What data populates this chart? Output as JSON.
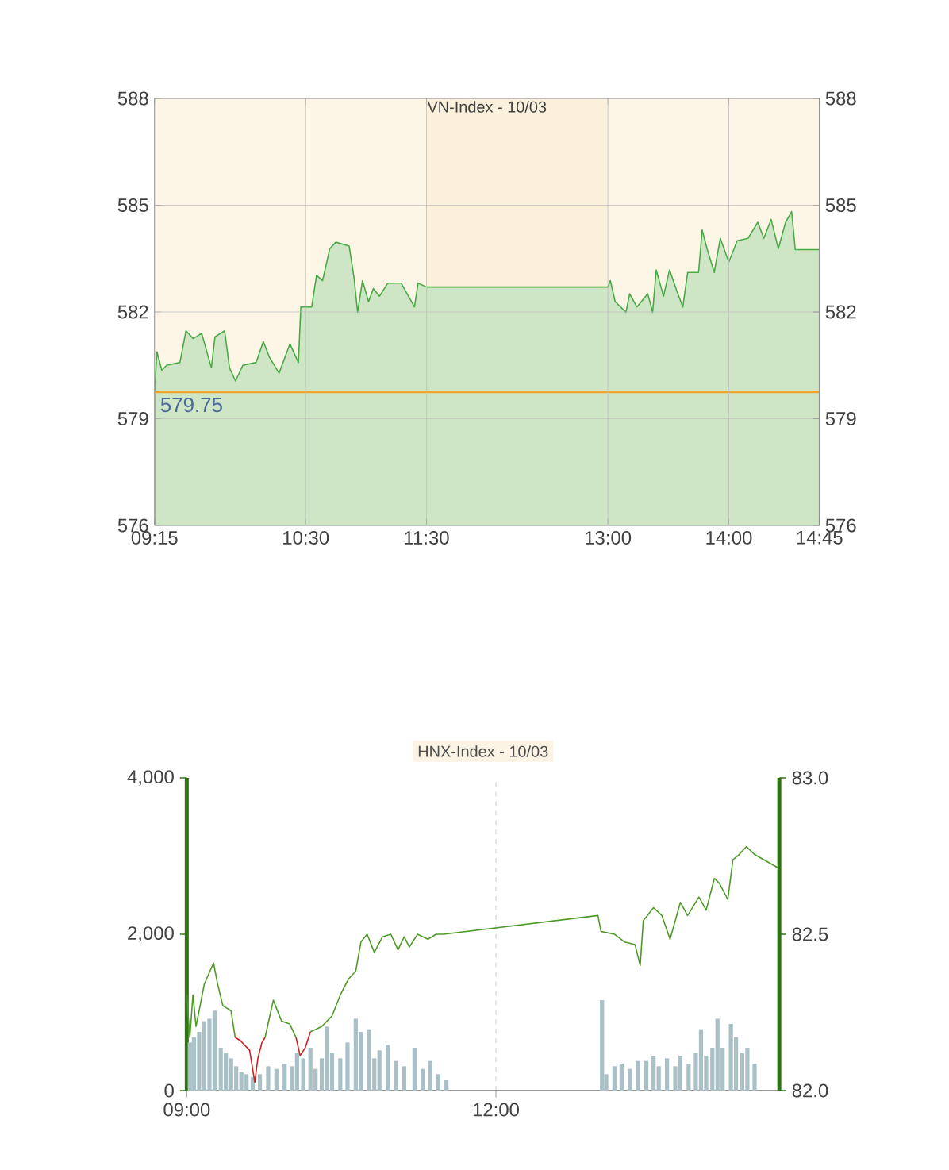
{
  "chart_data": [
    {
      "type": "area",
      "title": "VN-Index - 10/03",
      "xlim": [
        9.25,
        14.75
      ],
      "xticks": [
        {
          "value": 9.25,
          "label": "09:15"
        },
        {
          "value": 10.5,
          "label": "10:30"
        },
        {
          "value": 11.5,
          "label": "11:30"
        },
        {
          "value": 13,
          "label": "13:00"
        },
        {
          "value": 14,
          "label": "14:00"
        },
        {
          "value": 14.75,
          "label": "14:45"
        }
      ],
      "ylim": [
        576,
        588
      ],
      "yticks": [
        576,
        579,
        582,
        585,
        588
      ],
      "y2lim": [
        576,
        588
      ],
      "y2ticks": [
        576,
        579,
        582,
        585,
        588
      ],
      "grid": true,
      "bands": [
        {
          "axis": "x",
          "from": 11.5,
          "to": 13,
          "color": "#fbf0dc"
        }
      ],
      "ref_lines": [
        {
          "axis": "y",
          "value": 579.75,
          "label": "579.75",
          "color": "#f2a32a"
        }
      ],
      "series": [
        {
          "color": "#cfe6c6",
          "x": [
            9.25,
            9.27,
            9.31,
            9.35,
            9.46,
            9.51,
            9.57,
            9.64,
            9.72,
            9.75,
            9.83,
            9.87,
            9.92,
            9.98,
            10.09,
            10.15,
            10.2,
            10.28,
            10.37,
            10.44,
            10.46,
            10.55,
            10.59,
            10.64,
            10.7,
            10.75,
            10.86,
            10.9,
            10.93,
            10.97,
            11.02,
            11.06,
            11.11,
            11.18,
            11.29,
            11.4,
            11.43,
            11.5,
            13.0,
            13.02,
            13.06,
            13.15,
            13.18,
            13.24,
            13.33,
            13.37,
            13.4,
            13.46,
            13.51,
            13.57,
            13.62,
            13.66,
            13.75,
            13.78,
            13.82,
            13.88,
            13.93,
            14.0,
            14.07,
            14.16,
            14.24,
            14.29,
            14.35,
            14.41,
            14.47,
            14.52,
            14.55,
            14.75
          ],
          "values": [
            579.76,
            580.88,
            580.36,
            580.5,
            580.58,
            581.47,
            581.25,
            581.4,
            580.43,
            581.3,
            581.47,
            580.43,
            580.06,
            580.5,
            580.58,
            581.17,
            580.73,
            580.28,
            581.1,
            580.58,
            582.14,
            582.14,
            583.03,
            582.88,
            583.78,
            583.96,
            583.85,
            582.96,
            581.99,
            582.88,
            582.29,
            582.66,
            582.44,
            582.81,
            582.81,
            582.14,
            582.81,
            582.7,
            582.7,
            582.88,
            582.29,
            581.99,
            582.51,
            582.14,
            582.51,
            581.99,
            583.18,
            582.44,
            583.18,
            582.59,
            582.14,
            583.11,
            583.11,
            584.3,
            583.78,
            583.11,
            584.07,
            583.4,
            584.0,
            584.07,
            584.52,
            584.07,
            584.6,
            583.78,
            584.52,
            584.82,
            583.75,
            583.75
          ]
        }
      ]
    },
    {
      "type": "line",
      "title": "HNX-Index - 10/03",
      "xlim": [
        9,
        14.75
      ],
      "xticks": [
        {
          "value": 9,
          "label": "09:00"
        },
        {
          "value": 12,
          "label": "12:00"
        }
      ],
      "ylim": [
        0,
        4000
      ],
      "yticks": [
        {
          "value": 0,
          "label": "0"
        },
        {
          "value": 2000,
          "label": "2,000"
        },
        {
          "value": 4000,
          "label": "4,000"
        }
      ],
      "y2lim": [
        82,
        83
      ],
      "y2ticks": [
        {
          "value": 82,
          "label": "82.0"
        },
        {
          "value": 82.5,
          "label": "82.5"
        },
        {
          "value": 83,
          "label": "83.0"
        }
      ],
      "grid": "x",
      "series": [
        {
          "type": "bar",
          "color": "#a9c0c6",
          "x": [
            9.03,
            9.07,
            9.12,
            9.17,
            9.22,
            9.27,
            9.33,
            9.38,
            9.43,
            9.48,
            9.53,
            9.58,
            9.64,
            9.71,
            9.79,
            9.87,
            9.95,
            10.02,
            10.07,
            10.13,
            10.2,
            10.25,
            10.31,
            10.36,
            10.41,
            10.49,
            10.56,
            10.64,
            10.69,
            10.77,
            10.82,
            10.87,
            10.95,
            11.03,
            11.11,
            11.21,
            11.29,
            11.36,
            11.44,
            11.52,
            13.03,
            13.07,
            13.15,
            13.22,
            13.3,
            13.38,
            13.46,
            13.53,
            13.58,
            13.66,
            13.74,
            13.79,
            13.87,
            13.94,
            13.99,
            14.04,
            14.1,
            14.15,
            14.2,
            14.28,
            14.33,
            14.39,
            14.44,
            14.51
          ],
          "values": [
            616,
            683,
            751,
            887,
            920,
            1022,
            548,
            480,
            413,
            311,
            244,
            210,
            176,
            210,
            311,
            277,
            345,
            311,
            480,
            413,
            548,
            277,
            413,
            819,
            480,
            413,
            616,
            920,
            751,
            785,
            413,
            514,
            582,
            379,
            311,
            548,
            277,
            379,
            210,
            142,
            1157,
            210,
            311,
            345,
            277,
            379,
            379,
            447,
            311,
            413,
            311,
            447,
            345,
            480,
            785,
            447,
            548,
            920,
            548,
            853,
            683,
            480,
            548,
            345
          ]
        },
        {
          "type": "line",
          "axis": "y2",
          "color": "#4e9a26",
          "x": [
            9.0,
            9.03,
            9.06,
            9.09,
            9.17,
            9.26,
            9.3,
            9.35,
            9.43,
            9.47,
            9.52,
            9.61,
            9.66,
            9.69,
            9.73,
            9.76,
            9.84,
            9.92,
            10.0,
            10.06,
            10.1,
            10.15,
            10.2,
            10.31,
            10.41,
            10.49,
            10.57,
            10.64,
            10.69,
            10.75,
            10.82,
            10.9,
            10.98,
            11.05,
            11.11,
            11.16,
            11.24,
            11.34,
            11.42,
            11.49,
            12.99,
            13.02,
            13.15,
            13.25,
            13.35,
            13.4,
            13.43,
            13.53,
            13.61,
            13.69,
            13.79,
            13.86,
            13.97,
            14.04,
            14.12,
            14.17,
            14.25,
            14.3,
            14.36,
            14.43,
            14.51,
            14.74
          ],
          "values": [
            82.306,
            82.17,
            82.306,
            82.205,
            82.34,
            82.408,
            82.34,
            82.272,
            82.255,
            82.17,
            null,
            null,
            null,
            null,
            null,
            82.17,
            82.289,
            82.222,
            82.213,
            82.17,
            null,
            null,
            82.188,
            82.205,
            82.239,
            82.306,
            82.357,
            82.382,
            82.475,
            82.5,
            82.442,
            82.492,
            82.5,
            82.45,
            82.492,
            82.459,
            82.5,
            82.484,
            82.5,
            82.5,
            82.56,
            82.509,
            82.5,
            82.475,
            82.467,
            82.4,
            82.543,
            82.585,
            82.56,
            82.484,
            82.602,
            82.56,
            82.619,
            82.577,
            82.679,
            82.662,
            82.611,
            82.738,
            82.755,
            82.78,
            82.755,
            82.712
          ]
        },
        {
          "type": "line",
          "axis": "y2",
          "color": "#cc2222",
          "x": [
            9.47,
            9.52,
            9.61,
            9.66,
            9.69,
            9.73,
            9.76,
            9.9,
            10.06,
            10.1,
            10.15,
            10.2
          ],
          "values": [
            82.17,
            82.16,
            82.129,
            82.027,
            82.103,
            82.154,
            82.17,
            null,
            82.17,
            82.112,
            82.137,
            82.188
          ]
        }
      ]
    }
  ]
}
